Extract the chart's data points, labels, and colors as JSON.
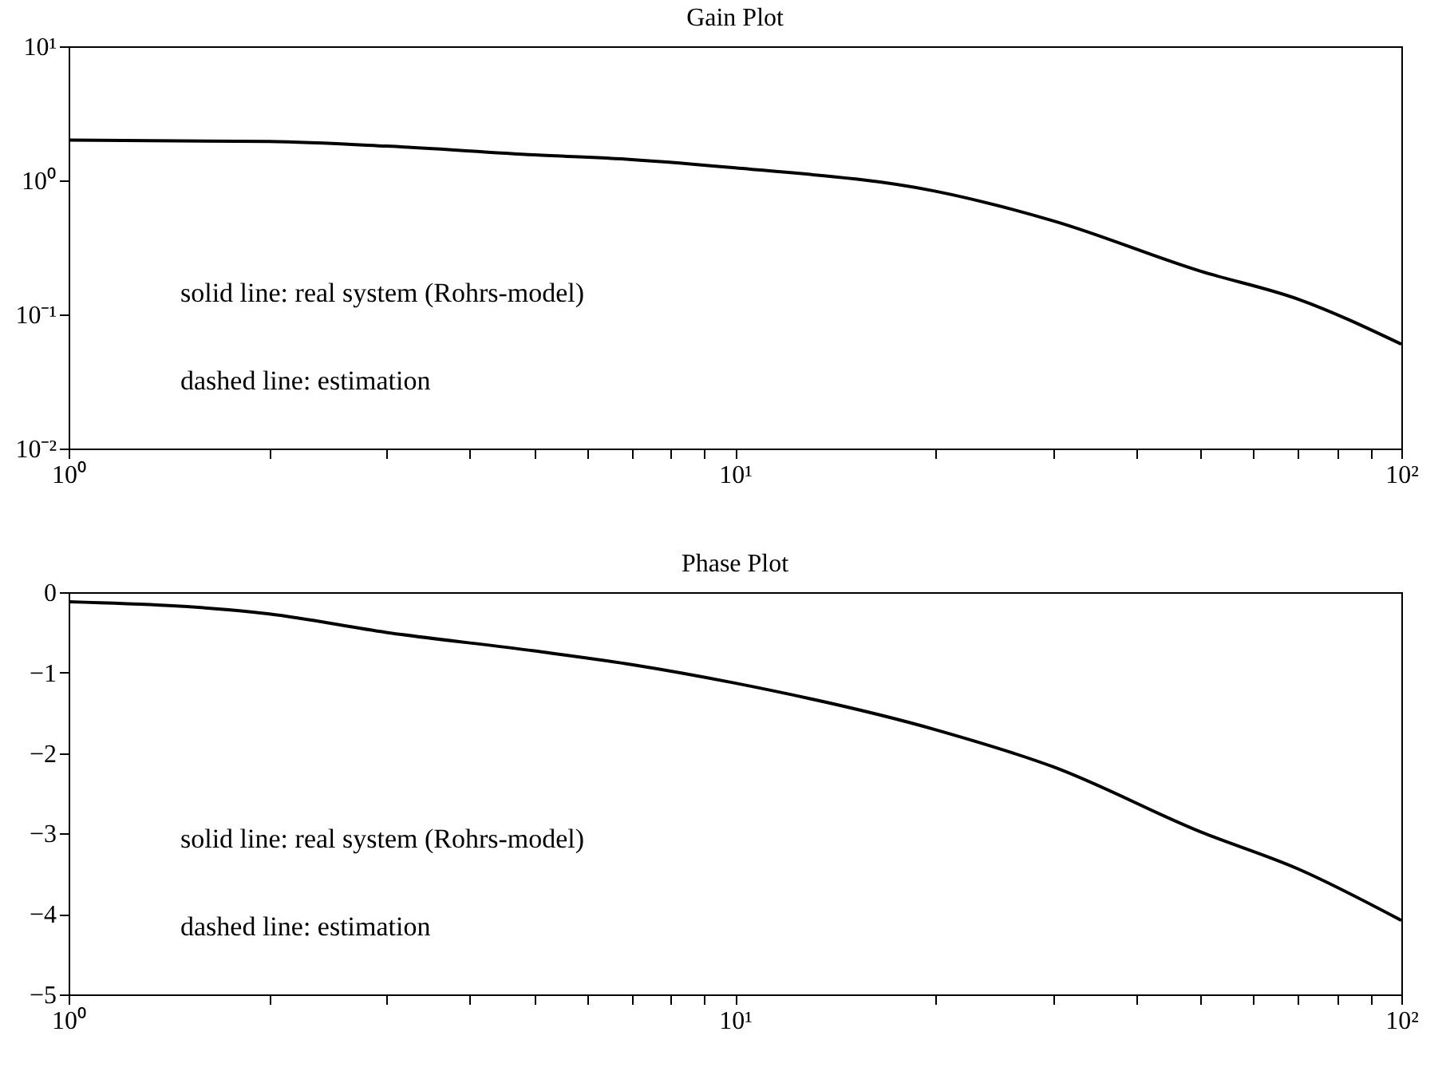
{
  "chart_data": [
    {
      "type": "line",
      "title": "Gain Plot",
      "log": "xy",
      "xlim": [
        1,
        100
      ],
      "ylim": [
        0.01,
        10
      ],
      "xticks": [
        {
          "value": 1,
          "label": "10⁰"
        },
        {
          "value": 2,
          "label": null
        },
        {
          "value": 3,
          "label": null
        },
        {
          "value": 4,
          "label": null
        },
        {
          "value": 5,
          "label": null
        },
        {
          "value": 6,
          "label": null
        },
        {
          "value": 7,
          "label": null
        },
        {
          "value": 8,
          "label": null
        },
        {
          "value": 9,
          "label": null
        },
        {
          "value": 10,
          "label": "10¹"
        },
        {
          "value": 20,
          "label": null
        },
        {
          "value": 30,
          "label": null
        },
        {
          "value": 40,
          "label": null
        },
        {
          "value": 50,
          "label": null
        },
        {
          "value": 60,
          "label": null
        },
        {
          "value": 70,
          "label": null
        },
        {
          "value": 80,
          "label": null
        },
        {
          "value": 90,
          "label": null
        },
        {
          "value": 100,
          "label": "10²"
        }
      ],
      "yticks": [
        {
          "value": 0.01,
          "label": "10⁻²"
        },
        {
          "value": 0.1,
          "label": "10⁻¹"
        },
        {
          "value": 1,
          "label": "10⁰"
        },
        {
          "value": 10,
          "label": "10¹"
        }
      ],
      "annotations": [
        "solid line: real system (Rohrs-model)",
        "dashed line: estimation"
      ],
      "series": [
        {
          "color": "#000000",
          "x": [
            1,
            2,
            3,
            5,
            7,
            10,
            20,
            30,
            50,
            70,
            100
          ],
          "values": [
            2.0,
            1.95,
            1.8,
            1.55,
            1.43,
            1.24,
            0.83,
            0.5,
            0.21,
            0.13,
            0.06
          ]
        }
      ]
    },
    {
      "type": "line",
      "title": "Phase Plot",
      "log": "x",
      "xlim": [
        1,
        100
      ],
      "ylim": [
        -5,
        0
      ],
      "xticks": [
        {
          "value": 1,
          "label": "10⁰"
        },
        {
          "value": 2,
          "label": null
        },
        {
          "value": 3,
          "label": null
        },
        {
          "value": 4,
          "label": null
        },
        {
          "value": 5,
          "label": null
        },
        {
          "value": 6,
          "label": null
        },
        {
          "value": 7,
          "label": null
        },
        {
          "value": 8,
          "label": null
        },
        {
          "value": 9,
          "label": null
        },
        {
          "value": 10,
          "label": "10¹"
        },
        {
          "value": 20,
          "label": null
        },
        {
          "value": 30,
          "label": null
        },
        {
          "value": 40,
          "label": null
        },
        {
          "value": 50,
          "label": null
        },
        {
          "value": 60,
          "label": null
        },
        {
          "value": 70,
          "label": null
        },
        {
          "value": 80,
          "label": null
        },
        {
          "value": 90,
          "label": null
        },
        {
          "value": 100,
          "label": "10²"
        }
      ],
      "yticks": [
        -5,
        -4,
        -3,
        -2,
        -1,
        0
      ],
      "annotations": [
        "solid line: real system (Rohrs-model)",
        "dashed line: estimation"
      ],
      "series": [
        {
          "color": "#000000",
          "x": [
            1,
            2,
            3,
            5,
            7,
            10,
            20,
            30,
            50,
            70,
            100
          ],
          "values": [
            -0.12,
            -0.27,
            -0.5,
            -0.73,
            -0.9,
            -1.13,
            -1.71,
            -2.17,
            -2.98,
            -3.44,
            -4.08
          ]
        }
      ]
    }
  ]
}
